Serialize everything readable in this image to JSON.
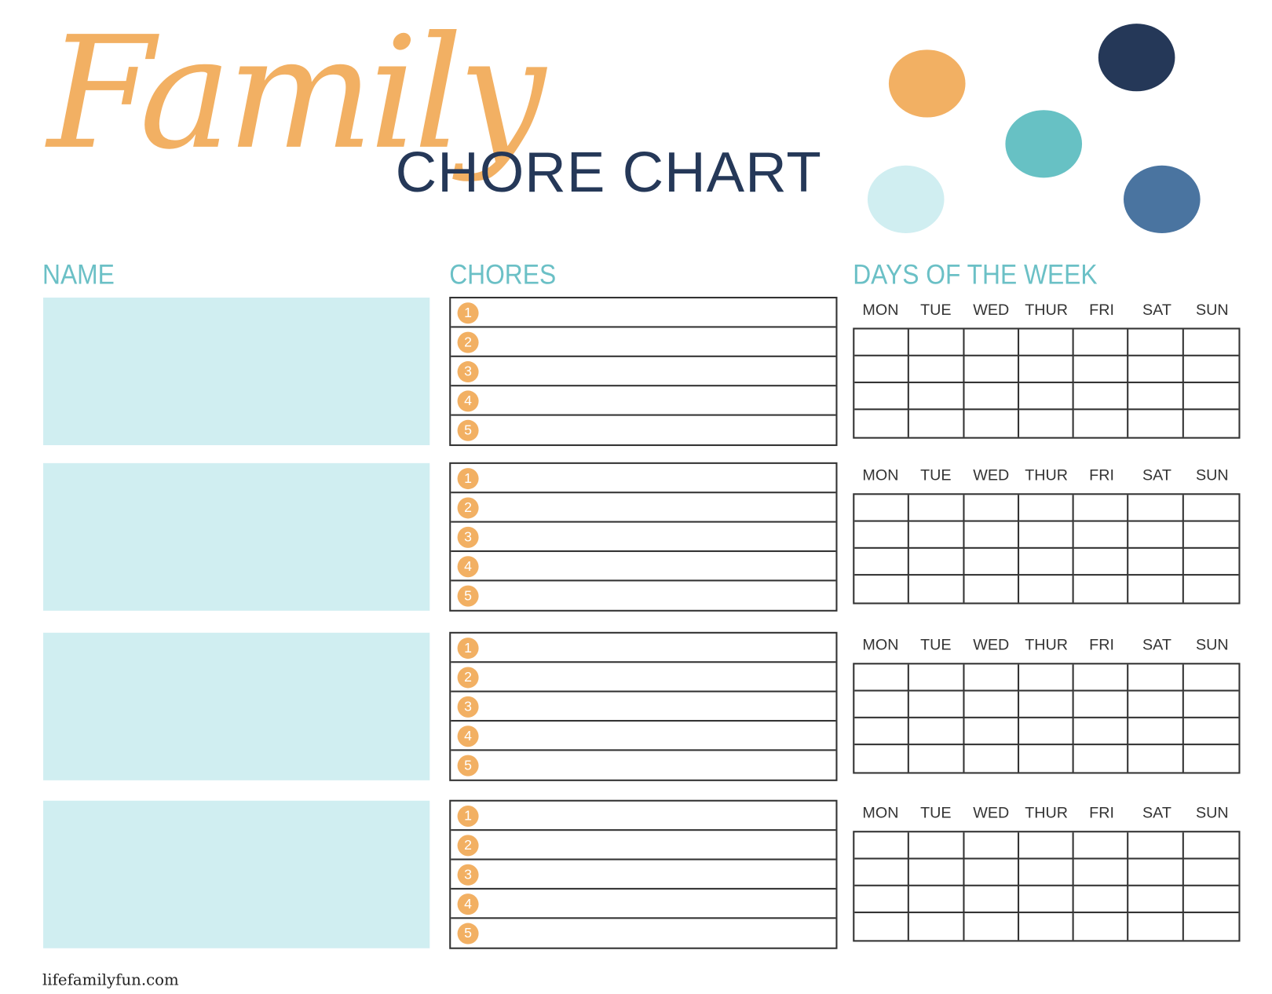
{
  "title": {
    "script": "Family",
    "main": "CHORE CHART"
  },
  "colors": {
    "orange": "#F2B063",
    "navy": "#253858",
    "teal": "#67C1C4",
    "light_blue": "#D0EEF1",
    "blue": "#4A74A0",
    "header": "#6BC0C6"
  },
  "headers": {
    "name": "NAME",
    "chores": "CHORES",
    "days": "DAYS OF THE WEEK"
  },
  "days": [
    "MON",
    "TUE",
    "WED",
    "THUR",
    "FRI",
    "SAT",
    "SUN"
  ],
  "chore_numbers": [
    "1",
    "2",
    "3",
    "4",
    "5"
  ],
  "blocks": [
    {
      "name": ""
    },
    {
      "name": ""
    },
    {
      "name": ""
    },
    {
      "name": ""
    }
  ],
  "footer": "lifefamilyfun.com"
}
